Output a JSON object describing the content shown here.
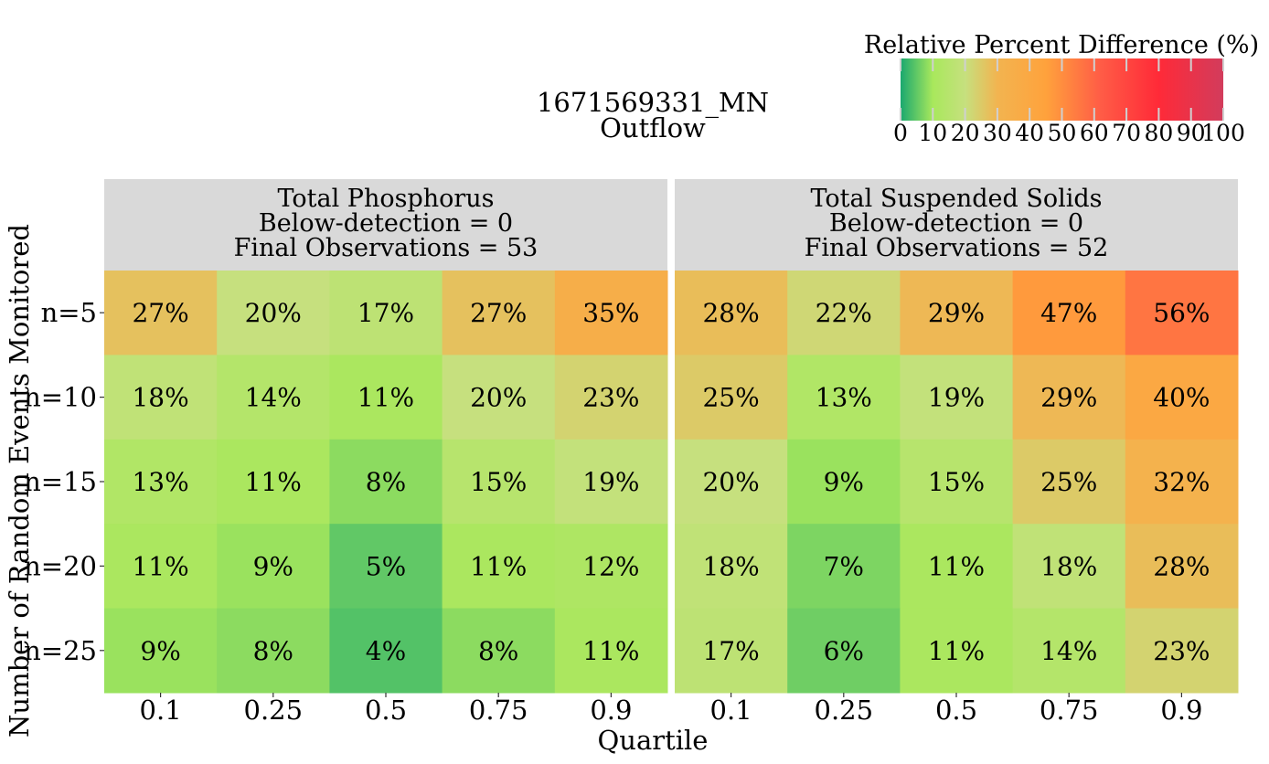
{
  "chart_data": {
    "type": "heatmap",
    "title": "1671569331_MN",
    "subtitle": "Outflow",
    "xlabel": "Quartile",
    "ylabel": "Number of Random Events Monitored",
    "x_categories": [
      "0.1",
      "0.25",
      "0.5",
      "0.75",
      "0.9"
    ],
    "y_categories": [
      "n=5",
      "n=10",
      "n=15",
      "n=20",
      "n=25"
    ],
    "value_suffix": "%",
    "legend": {
      "title": "Relative Percent Difference (%)",
      "placement": "top-right",
      "range": [
        0,
        100
      ],
      "ticks": [
        "0",
        "10",
        "20",
        "30",
        "40",
        "50",
        "60",
        "70",
        "80",
        "90",
        "100"
      ],
      "color_stops": [
        {
          "value": 0,
          "color": "#1aa86f"
        },
        {
          "value": 10,
          "color": "#a8e85c"
        },
        {
          "value": 20,
          "color": "#c6e07e"
        },
        {
          "value": 30,
          "color": "#f2b450"
        },
        {
          "value": 45,
          "color": "#ffa23c"
        },
        {
          "value": 62,
          "color": "#ff5c46"
        },
        {
          "value": 80,
          "color": "#ff2a38"
        },
        {
          "value": 100,
          "color": "#d23c5c"
        }
      ]
    },
    "panels": [
      {
        "title": "Total Phosphorus",
        "below_detection": "Below-detection = 0",
        "final_observations": "Final Observations = 53",
        "values": [
          [
            27,
            20,
            17,
            27,
            35
          ],
          [
            18,
            14,
            11,
            20,
            23
          ],
          [
            13,
            11,
            8,
            15,
            19
          ],
          [
            11,
            9,
            5,
            11,
            12
          ],
          [
            9,
            8,
            4,
            8,
            11
          ]
        ]
      },
      {
        "title": "Total Suspended Solids",
        "below_detection": "Below-detection = 0",
        "final_observations": "Final Observations = 52",
        "values": [
          [
            28,
            22,
            29,
            47,
            56
          ],
          [
            25,
            13,
            19,
            29,
            40
          ],
          [
            20,
            9,
            15,
            25,
            32
          ],
          [
            18,
            7,
            11,
            18,
            28
          ],
          [
            17,
            6,
            11,
            14,
            23
          ]
        ]
      }
    ],
    "panel_header_color": "#d9d9d9",
    "grid": false
  }
}
